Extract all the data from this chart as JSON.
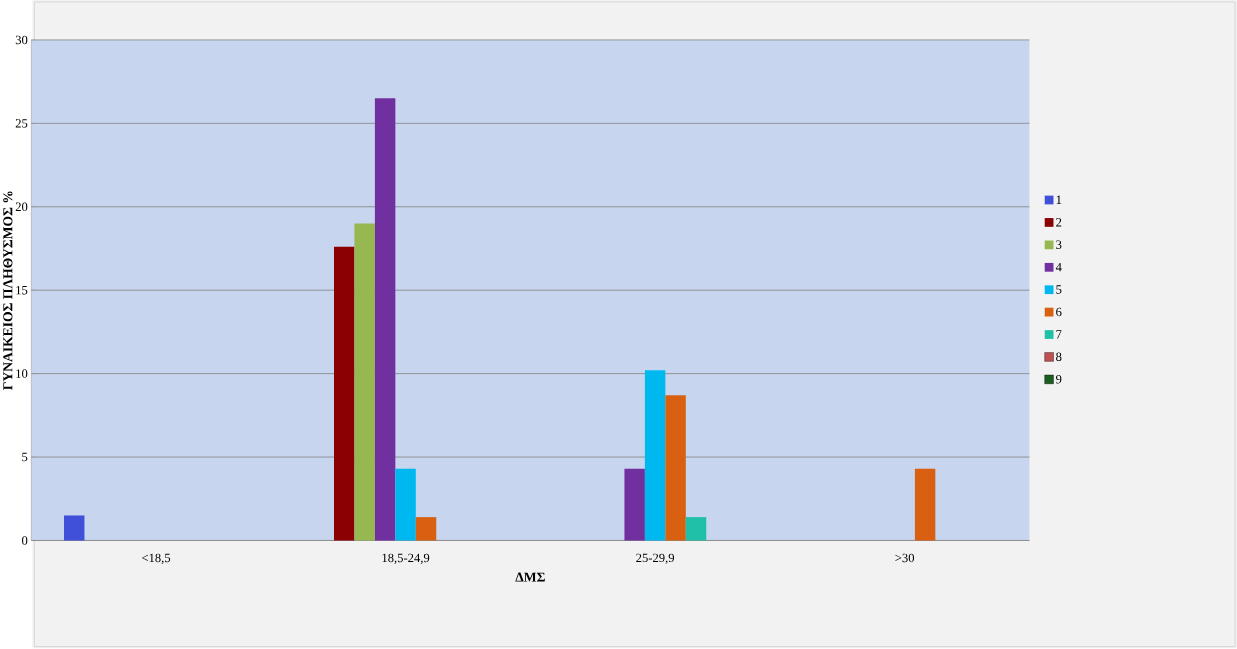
{
  "chart_data": {
    "type": "bar",
    "xlabel": "ΔΜΣ",
    "ylabel": "ΓΥΝΑΙΚΕΙΟΣ ΠΛΗΘΥΣΜΟΣ %",
    "categories": [
      "<18,5",
      "18,5-24,9",
      "25-29,9",
      ">30"
    ],
    "series": [
      {
        "name": "1",
        "color": "#4050d8",
        "values": [
          1.5,
          null,
          null,
          null
        ]
      },
      {
        "name": "2",
        "color": "#8b0000",
        "values": [
          null,
          17.6,
          null,
          null
        ]
      },
      {
        "name": "3",
        "color": "#97b850",
        "values": [
          null,
          19.0,
          null,
          null
        ]
      },
      {
        "name": "4",
        "color": "#7030a0",
        "values": [
          null,
          26.5,
          4.3,
          null
        ]
      },
      {
        "name": "5",
        "color": "#00b8f0",
        "values": [
          null,
          4.3,
          10.2,
          null
        ]
      },
      {
        "name": "6",
        "color": "#d86010",
        "values": [
          null,
          1.4,
          8.7,
          4.3
        ]
      },
      {
        "name": "7",
        "color": "#20c0a8",
        "values": [
          null,
          null,
          1.4,
          null
        ]
      },
      {
        "name": "8",
        "color": "#c05050",
        "values": [
          null,
          null,
          null,
          null
        ]
      },
      {
        "name": "9",
        "color": "#1a5e20",
        "values": [
          null,
          null,
          null,
          null
        ]
      }
    ],
    "ylim": [
      0,
      30
    ],
    "yticks": [
      0,
      5,
      10,
      15,
      20,
      25,
      30
    ],
    "grid": "y",
    "legend": "right"
  }
}
